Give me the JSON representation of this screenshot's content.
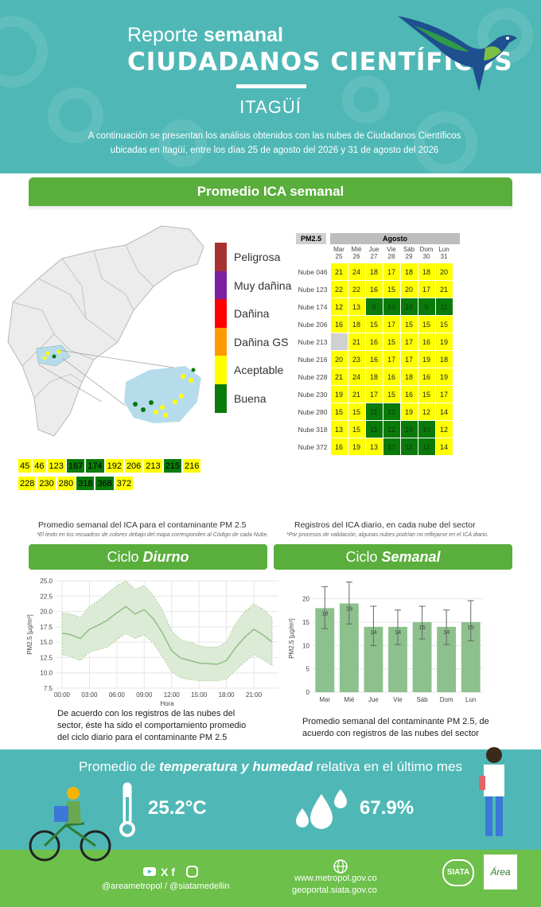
{
  "header": {
    "title_pre": "Reporte",
    "title_bold": "semanal",
    "brand": "CIUDADANOS CIENTÍFICOS",
    "city": "ITAGÜÍ",
    "intro": "A continuación se presentan los análisis obtenidos con las nubes de Ciudadanos Científicos ubicadas en Itagüí, entre los días 25 de agosto del 2026 y 31 de agosto del 2026"
  },
  "section_ica": {
    "title": "Promedio ICA semanal"
  },
  "legend": [
    {
      "label": "Peligrosa",
      "color": "#a83232"
    },
    {
      "label": "Muy dañina",
      "color": "#7b1fa2"
    },
    {
      "label": "Dañina",
      "color": "#ff0000"
    },
    {
      "label": "Dañina GS",
      "color": "#ff9900"
    },
    {
      "label": "Aceptable",
      "color": "#ffff00"
    },
    {
      "label": "Buena",
      "color": "#0a7a0a"
    }
  ],
  "ica_strip": {
    "row1": [
      {
        "v": "45",
        "c": "#ffff00"
      },
      {
        "v": "46",
        "c": "#ffff00"
      },
      {
        "v": "123",
        "c": "#ffff00"
      },
      {
        "v": "167",
        "c": "#0a7a0a"
      },
      {
        "v": "174",
        "c": "#0a7a0a"
      },
      {
        "v": "192",
        "c": "#ffff00"
      },
      {
        "v": "206",
        "c": "#ffff00"
      },
      {
        "v": "213",
        "c": "#ffff00"
      },
      {
        "v": "215",
        "c": "#0a7a0a"
      },
      {
        "v": "216",
        "c": "#ffff00"
      }
    ],
    "row2": [
      {
        "v": "228",
        "c": "#ffff00"
      },
      {
        "v": "230",
        "c": "#ffff00"
      },
      {
        "v": "280",
        "c": "#ffff00"
      },
      {
        "v": "318",
        "c": "#0a7a0a"
      },
      {
        "v": "368",
        "c": "#0a7a0a"
      },
      {
        "v": "372",
        "c": "#ffff00"
      }
    ]
  },
  "heatmap": {
    "pm_label": "PM2.5",
    "month": "Agosto",
    "days": [
      {
        "d": "Mar",
        "n": "25"
      },
      {
        "d": "Mié",
        "n": "26"
      },
      {
        "d": "Jue",
        "n": "27"
      },
      {
        "d": "Vie",
        "n": "28"
      },
      {
        "d": "Sáb",
        "n": "29"
      },
      {
        "d": "Dom",
        "n": "30"
      },
      {
        "d": "Lun",
        "n": "31"
      }
    ],
    "rows": [
      {
        "name": "Nube 046",
        "values": [
          "21",
          "24",
          "18",
          "17",
          "18",
          "18",
          "20"
        ],
        "colors": [
          "y",
          "y",
          "y",
          "y",
          "y",
          "y",
          "y"
        ]
      },
      {
        "name": "Nube 123",
        "values": [
          "22",
          "22",
          "16",
          "15",
          "20",
          "17",
          "21"
        ],
        "colors": [
          "y",
          "y",
          "y",
          "y",
          "y",
          "y",
          "y"
        ]
      },
      {
        "name": "Nube 174",
        "values": [
          "12",
          "13",
          "9",
          "10",
          "10",
          "9",
          "11"
        ],
        "colors": [
          "y",
          "y",
          "g",
          "g",
          "g",
          "g",
          "g"
        ]
      },
      {
        "name": "Nube 206",
        "values": [
          "16",
          "18",
          "15",
          "17",
          "15",
          "15",
          "15"
        ],
        "colors": [
          "y",
          "y",
          "y",
          "y",
          "y",
          "y",
          "y"
        ]
      },
      {
        "name": "Nube 213",
        "values": [
          "",
          "21",
          "16",
          "15",
          "17",
          "16",
          "19"
        ],
        "colors": [
          "n",
          "y",
          "y",
          "y",
          "y",
          "y",
          "y"
        ]
      },
      {
        "name": "Nube 216",
        "values": [
          "20",
          "23",
          "16",
          "17",
          "17",
          "19",
          "18"
        ],
        "colors": [
          "y",
          "y",
          "y",
          "y",
          "y",
          "y",
          "y"
        ]
      },
      {
        "name": "Nube 228",
        "values": [
          "21",
          "24",
          "18",
          "16",
          "18",
          "16",
          "19"
        ],
        "colors": [
          "y",
          "y",
          "y",
          "y",
          "y",
          "y",
          "y"
        ]
      },
      {
        "name": "Nube 230",
        "values": [
          "19",
          "21",
          "17",
          "15",
          "16",
          "15",
          "17"
        ],
        "colors": [
          "y",
          "y",
          "y",
          "y",
          "y",
          "y",
          "y"
        ]
      },
      {
        "name": "Nube 280",
        "values": [
          "15",
          "15",
          "11",
          "12",
          "19",
          "12",
          "14"
        ],
        "colors": [
          "y",
          "y",
          "g",
          "g",
          "y",
          "y",
          "y"
        ]
      },
      {
        "name": "Nube 318",
        "values": [
          "13",
          "15",
          "11",
          "12",
          "10",
          "10",
          "12"
        ],
        "colors": [
          "y",
          "y",
          "g",
          "g",
          "g",
          "g",
          "y"
        ]
      },
      {
        "name": "Nube 372",
        "values": [
          "16",
          "19",
          "13",
          "10",
          "11",
          "11",
          "14"
        ],
        "colors": [
          "y",
          "y",
          "y",
          "g",
          "g",
          "g",
          "y"
        ]
      }
    ]
  },
  "captions": {
    "left": "Promedio semanal del ICA para el contaminante PM 2.5",
    "left_note": "*El texto en los recuadros de colores debajo del mapa corresponden al Código de cada Nube.",
    "right": "Registros del ICA diario, en cada nube del sector",
    "right_note": "*Por procesos de validación, algunas nubes podrían no reflejarse en el ICA diario."
  },
  "tabs": {
    "diurno_pre": "Ciclo",
    "diurno_bold": "Diurno",
    "semanal_pre": "Ciclo",
    "semanal_bold": "Semanal"
  },
  "chart_data": [
    {
      "type": "line",
      "title": "",
      "xlabel": "Hora",
      "ylabel": "PM2.5 [µg/m³]",
      "ylim": [
        7.5,
        25.0
      ],
      "yticks": [
        "7.5",
        "10.0",
        "12.5",
        "15.0",
        "17.5",
        "20.0",
        "22.5",
        "25.0"
      ],
      "xticks": [
        "00:00",
        "03:00",
        "06:00",
        "09:00",
        "12:00",
        "15:00",
        "18:00",
        "21:00"
      ],
      "x": [
        0,
        1,
        2,
        3,
        4,
        5,
        6,
        7,
        8,
        9,
        10,
        11,
        12,
        13,
        14,
        15,
        16,
        17,
        18,
        19,
        20,
        21,
        22,
        23
      ],
      "mean": [
        16.5,
        16.2,
        15.6,
        17.1,
        17.8,
        18.6,
        19.8,
        20.8,
        19.6,
        20.3,
        18.8,
        16.5,
        13.6,
        12.4,
        12.0,
        11.6,
        11.5,
        11.4,
        12.0,
        14.1,
        15.8,
        17.1,
        16.2,
        15.0
      ],
      "upper": [
        19.8,
        19.6,
        19.0,
        20.8,
        21.8,
        23.0,
        24.2,
        25.0,
        23.6,
        24.2,
        22.6,
        20.2,
        16.8,
        15.4,
        15.0,
        14.4,
        14.2,
        14.2,
        15.0,
        18.0,
        20.0,
        21.2,
        20.4,
        19.0
      ],
      "lower": [
        13.0,
        12.6,
        12.0,
        13.4,
        13.8,
        14.2,
        15.4,
        16.4,
        15.6,
        16.2,
        14.8,
        12.6,
        10.2,
        9.2,
        8.9,
        8.7,
        8.7,
        8.7,
        9.0,
        10.4,
        11.8,
        13.0,
        12.2,
        11.2
      ],
      "grid": true
    },
    {
      "type": "bar",
      "title": "",
      "ylabel": "PM2.5 [µg/m³]",
      "ylim": [
        0,
        23
      ],
      "yticks": [
        "0",
        "5",
        "10",
        "15",
        "20"
      ],
      "categories": [
        "Mar",
        "Mié",
        "Jue",
        "Vie",
        "Sáb",
        "Dom",
        "Lun"
      ],
      "values": [
        18,
        19,
        14,
        14,
        15,
        14,
        15
      ],
      "err_low": [
        13.6,
        14.6,
        10.0,
        10.2,
        11.4,
        10.2,
        11.0
      ],
      "err_high": [
        22.6,
        23.6,
        18.4,
        17.6,
        18.4,
        17.6,
        19.6
      ],
      "labels": [
        "18",
        "19",
        "14",
        "14",
        "15",
        "14",
        "15"
      ],
      "grid": true
    }
  ],
  "chart_captions": {
    "diurno": "De acuerdo con los registros de las nubes del sector, éste ha sido el comportamiento promedio del ciclo diario para el contaminante PM 2.5",
    "semanal": "Promedio semanal del contaminante PM 2.5, de acuerdo con registros de las nubes del sector"
  },
  "footer": {
    "heading_pre": "Promedio de",
    "heading_bold": "temperatura y humedad",
    "heading_post": "relativa en el último mes",
    "temperature": "25.2°C",
    "humidity": "67.9%",
    "social_handles": "@areametropol / @siatamedellin",
    "web1": "www.metropol.gov.co",
    "web2": "geoportal.siata.gov.co",
    "siata_logo": "SIATA",
    "area_logo": "Área"
  },
  "colors": {
    "header": "#4fb8b6",
    "green": "#5aae3c",
    "good": "#0a7a0a",
    "acceptable": "#ffff00",
    "bar": "#8cc08c"
  }
}
